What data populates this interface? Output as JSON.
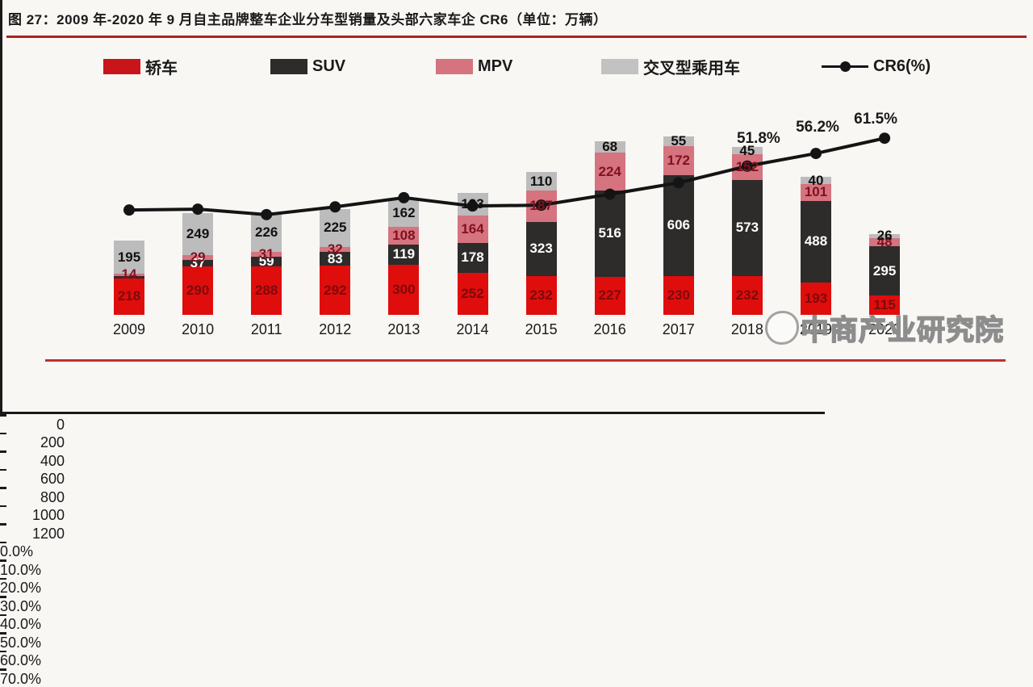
{
  "figure": {
    "title": "图 27：2009 年-2020 年 9 月自主品牌整车企业分车型销量及头部六家车企 CR6（单位：万辆）",
    "watermark": "中商产业研究院"
  },
  "legend": [
    {
      "label": "轿车",
      "type": "swatch",
      "color": "#c9141a"
    },
    {
      "label": "SUV",
      "type": "swatch",
      "color": "#2e2b2b"
    },
    {
      "label": "MPV",
      "type": "swatch",
      "color": "#d5737f"
    },
    {
      "label": "交叉型乘用车",
      "type": "swatch",
      "color": "#c2c2c2"
    },
    {
      "label": "CR6(%)",
      "type": "line",
      "color": "#141414"
    }
  ],
  "chart_data": {
    "type": "stacked-bar+line",
    "unit": "万辆",
    "categories": [
      "2009",
      "2010",
      "2011",
      "2012",
      "2013",
      "2014",
      "2015",
      "2016",
      "2017",
      "2018",
      "2019",
      "2020"
    ],
    "series": [
      {
        "name": "轿车",
        "color": "#e00d0d",
        "label_color": "#7d0a0a",
        "values": [
          218,
          290,
          288,
          292,
          300,
          252,
          232,
          227,
          230,
          232,
          193,
          115
        ],
        "labels": [
          "218",
          "290",
          "288",
          "292",
          "300",
          "252",
          "232",
          "227",
          "230",
          "232",
          "193",
          "115"
        ]
      },
      {
        "name": "SUV",
        "color": "#2e2b2b",
        "label_color": "#ffffff",
        "values": [
          15,
          37,
          59,
          83,
          119,
          178,
          323,
          516,
          606,
          573,
          488,
          295
        ],
        "labels": [
          "",
          "37",
          "59",
          "83",
          "119",
          "178",
          "323",
          "516",
          "606",
          "573",
          "488",
          "295"
        ]
      },
      {
        "name": "MPV",
        "color": "#d5737f",
        "label_color": "#82101e",
        "values": [
          14,
          29,
          31,
          32,
          108,
          164,
          187,
          224,
          172,
          152,
          101,
          48
        ],
        "labels": [
          "14",
          "29",
          "31",
          "32",
          "108",
          "164",
          "187",
          "224",
          "172",
          "152",
          "101",
          "48"
        ]
      },
      {
        "name": "交叉型乘用车",
        "color": "#bcbcbc",
        "label_color": "#111111",
        "values": [
          195,
          249,
          226,
          225,
          162,
          133,
          110,
          68,
          55,
          45,
          40,
          26
        ],
        "labels": [
          "195",
          "249",
          "226",
          "225",
          "162",
          "133",
          "110",
          "68",
          "55",
          "45",
          "40",
          "26"
        ]
      }
    ],
    "line": {
      "name": "CR6(%)",
      "color": "#141414",
      "values": [
        36.5,
        36.8,
        34.9,
        37.6,
        40.8,
        37.9,
        38.2,
        42.0,
        46.0,
        51.8,
        56.2,
        61.5
      ],
      "point_labels": {
        "2018": "51.8%",
        "2019": "56.2%",
        "2020": "61.5%"
      }
    },
    "left_axis": {
      "min": 0,
      "max": 1200,
      "step": 200,
      "ticks": [
        "0",
        "200",
        "400",
        "600",
        "800",
        "1000",
        "1200"
      ]
    },
    "right_axis": {
      "min": 0,
      "max": 70,
      "step": 10,
      "ticks": [
        "0.0%",
        "10.0%",
        "20.0%",
        "30.0%",
        "40.0%",
        "50.0%",
        "60.0%",
        "70.0%"
      ]
    },
    "legend_position": "top",
    "grid": false
  }
}
